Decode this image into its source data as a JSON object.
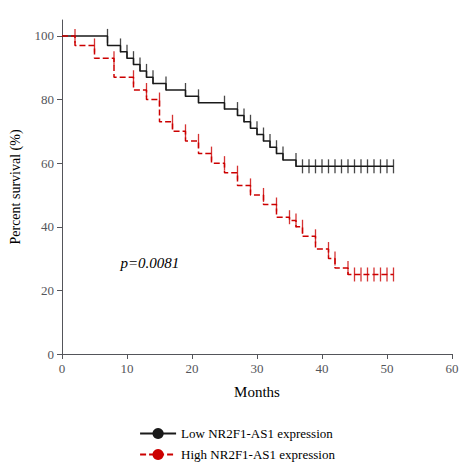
{
  "chart_data": {
    "type": "line",
    "xlabel": "Months",
    "ylabel": "Percent survival (%)",
    "xlim": [
      0,
      60
    ],
    "xticks": [
      0,
      10,
      20,
      30,
      40,
      50,
      60
    ],
    "ylim": [
      0,
      105
    ],
    "yticks": [
      0,
      20,
      40,
      60,
      80,
      100
    ],
    "grid": false,
    "legend": "bottom",
    "annotations": [
      {
        "text": "p=0.0081",
        "x": 9,
        "y": 26
      }
    ],
    "series": [
      {
        "name": "Low NR2F1-AS1 expression",
        "color": "#1a1a1a",
        "line_style": "solid",
        "marker": "|",
        "x": [
          0,
          7,
          7,
          9,
          9,
          10,
          10,
          11,
          11,
          12,
          12,
          13,
          13,
          14,
          14,
          16,
          16,
          19,
          19,
          21,
          21,
          25,
          25,
          27,
          27,
          28,
          28,
          29,
          29,
          30,
          30,
          31,
          31,
          32,
          32,
          33,
          33,
          34,
          34,
          36,
          36,
          51
        ],
        "values": [
          100,
          100,
          97,
          97,
          95,
          95,
          93,
          93,
          91,
          91,
          89,
          89,
          87,
          87,
          85,
          85,
          83,
          83,
          81,
          81,
          79,
          79,
          77,
          77,
          75,
          75,
          73,
          73,
          71,
          71,
          69,
          69,
          67,
          67,
          65,
          65,
          63,
          63,
          61,
          61,
          59,
          59
        ],
        "censor_x": [
          7,
          9,
          10,
          11,
          12,
          13,
          14,
          16,
          19,
          21,
          25,
          27,
          28,
          29,
          30,
          31,
          32,
          33,
          34,
          36,
          37,
          38,
          39,
          40,
          41,
          42,
          43,
          44,
          45,
          46,
          47,
          48,
          49,
          50,
          51
        ],
        "censor_y": [
          100,
          97,
          95,
          93,
          91,
          89,
          87,
          85,
          83,
          81,
          79,
          77,
          75,
          73,
          71,
          69,
          67,
          65,
          63,
          61,
          59,
          59,
          59,
          59,
          59,
          59,
          59,
          59,
          59,
          59,
          59,
          59,
          59,
          59,
          59
        ]
      },
      {
        "name": "High NR2F1-AS1 expression",
        "color": "#cc0000",
        "line_style": "dashed",
        "marker": "|",
        "x": [
          0,
          2,
          2,
          5,
          5,
          8,
          8,
          11,
          11,
          13,
          13,
          15,
          15,
          17,
          17,
          19,
          19,
          21,
          21,
          23,
          23,
          25,
          25,
          27,
          27,
          29,
          29,
          31,
          31,
          33,
          33,
          35,
          35,
          36,
          36,
          37,
          37,
          39,
          39,
          41,
          41,
          42,
          42,
          44,
          44,
          51
        ],
        "values": [
          100,
          100,
          97,
          97,
          93,
          93,
          87,
          87,
          83,
          83,
          80,
          80,
          73,
          73,
          70,
          70,
          67,
          67,
          63,
          63,
          60,
          60,
          57,
          57,
          53,
          53,
          50,
          50,
          47,
          47,
          43,
          43,
          42,
          42,
          40,
          40,
          37,
          37,
          33,
          33,
          30,
          30,
          27,
          27,
          25,
          25
        ],
        "censor_x": [
          2,
          5,
          8,
          11,
          13,
          15,
          17,
          19,
          21,
          23,
          25,
          27,
          29,
          31,
          33,
          35,
          36,
          37,
          39,
          41,
          42,
          44,
          45,
          46,
          47,
          48,
          49,
          50,
          51
        ],
        "censor_y": [
          100,
          97,
          93,
          87,
          83,
          80,
          73,
          70,
          67,
          63,
          60,
          57,
          53,
          50,
          47,
          43,
          42,
          40,
          37,
          33,
          30,
          27,
          25,
          25,
          25,
          25,
          25,
          25,
          25
        ]
      }
    ]
  }
}
